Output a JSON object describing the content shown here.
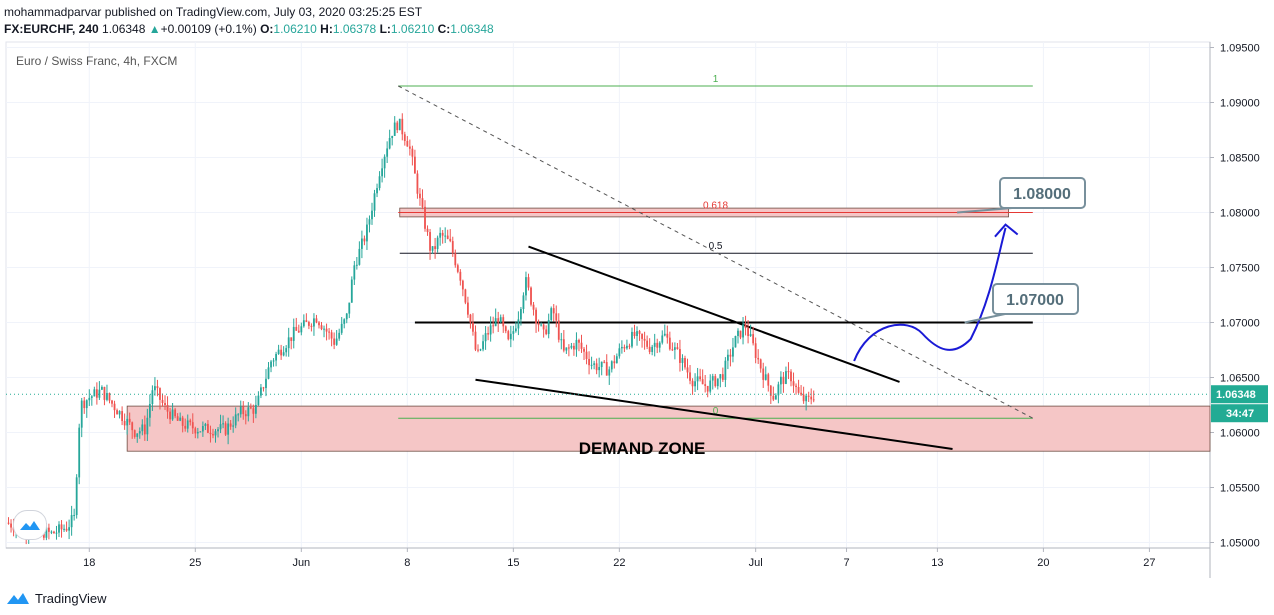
{
  "header": {
    "publisher_line": "mohammadparvar published on TradingView.com, July 03, 2020 03:25:25 EST",
    "symbol": "FX:EURCHF, 240",
    "last": "1.06348",
    "change": "+0.00109 (+0.1%)",
    "o_label": "O:",
    "o_value": "1.06210",
    "h_label": "H:",
    "h_value": "1.06378",
    "l_label": "L:",
    "l_value": "1.06210",
    "c_label": "C:",
    "c_value": "1.06348"
  },
  "footer": {
    "brand": "TradingView"
  },
  "colors": {
    "up": "#26a69a",
    "down": "#ef5350",
    "zone": "#f5c6c6",
    "fib_green": "#4caf50",
    "fib_red": "#e53935",
    "curve": "#1a1ad6",
    "callout": "#78909c",
    "price_tag": "#22ab94"
  },
  "chart_data": {
    "type": "candlestick",
    "title": "Euro / Swiss Franc, 4h, FXCM",
    "ylim": [
      1.0495,
      1.0955
    ],
    "y_ticks": [
      "1.05000",
      "1.05500",
      "1.06000",
      "1.06500",
      "1.07000",
      "1.07500",
      "1.08000",
      "1.08500",
      "1.09000",
      "1.09500"
    ],
    "x_ticks": [
      {
        "label": "18",
        "day": -13
      },
      {
        "label": "25",
        "day": -6
      },
      {
        "label": "Jun",
        "day": 1
      },
      {
        "label": "8",
        "day": 8
      },
      {
        "label": "15",
        "day": 15
      },
      {
        "label": "22",
        "day": 22
      },
      {
        "label": "Jul",
        "day": 31
      },
      {
        "label": "7",
        "day": 37
      },
      {
        "label": "13",
        "day": 43
      },
      {
        "label": "20",
        "day": 50
      },
      {
        "label": "27",
        "day": 57
      }
    ],
    "x_range_days": [
      -18.5,
      61
    ],
    "last_price": "1.06348",
    "countdown": "34:47",
    "price_path": [
      [
        -18.5,
        1.0518
      ],
      [
        -17,
        1.0512
      ],
      [
        -15.5,
        1.0508
      ],
      [
        -14.5,
        1.0514
      ],
      [
        -14,
        1.0522
      ],
      [
        -13.6,
        1.0625
      ],
      [
        -13,
        1.0632
      ],
      [
        -12.2,
        1.0638
      ],
      [
        -11,
        1.0618
      ],
      [
        -10,
        1.0601
      ],
      [
        -9.3,
        1.0603
      ],
      [
        -8.8,
        1.0642
      ],
      [
        -8,
        1.0622
      ],
      [
        -7,
        1.0608
      ],
      [
        -5.7,
        1.0603
      ],
      [
        -4,
        1.0603
      ],
      [
        -3,
        1.0618
      ],
      [
        -2,
        1.0622
      ],
      [
        -1,
        1.0665
      ],
      [
        0.5,
        1.069
      ],
      [
        2,
        1.0705
      ],
      [
        3.2,
        1.0682
      ],
      [
        4,
        1.0705
      ],
      [
        4.5,
        1.0752
      ],
      [
        5.3,
        1.0782
      ],
      [
        6.2,
        1.084
      ],
      [
        6.9,
        1.0872
      ],
      [
        7.4,
        1.0882
      ],
      [
        8.1,
        1.0862
      ],
      [
        8.8,
        1.0812
      ],
      [
        9.6,
        1.0762
      ],
      [
        10.2,
        1.078
      ],
      [
        10.8,
        1.0772
      ],
      [
        11.5,
        1.0742
      ],
      [
        12,
        1.0712
      ],
      [
        12.6,
        1.0668
      ],
      [
        13.2,
        1.0688
      ],
      [
        14,
        1.0705
      ],
      [
        14.7,
        1.068
      ],
      [
        15.3,
        1.0705
      ],
      [
        15.8,
        1.0738
      ],
      [
        16.5,
        1.0705
      ],
      [
        17,
        1.0688
      ],
      [
        17.6,
        1.0712
      ],
      [
        18.3,
        1.0672
      ],
      [
        19.2,
        1.0682
      ],
      [
        20.2,
        1.0662
      ],
      [
        21.3,
        1.0657
      ],
      [
        22.2,
        1.0678
      ],
      [
        23,
        1.0688
      ],
      [
        24,
        1.0678
      ],
      [
        25,
        1.0688
      ],
      [
        26,
        1.0668
      ],
      [
        26.8,
        1.0648
      ],
      [
        27.8,
        1.0642
      ],
      [
        28.8,
        1.0652
      ],
      [
        29.6,
        1.0682
      ],
      [
        30.3,
        1.0698
      ],
      [
        31,
        1.0672
      ],
      [
        31.6,
        1.065
      ],
      [
        32.2,
        1.0632
      ],
      [
        32.7,
        1.0648
      ],
      [
        33.3,
        1.0652
      ],
      [
        33.9,
        1.0632
      ],
      [
        34.4,
        1.0628
      ],
      [
        34.9,
        1.0635
      ]
    ],
    "fib_levels": [
      {
        "label": "1",
        "price": 1.0915,
        "color": "#4caf50"
      },
      {
        "label": "0.618",
        "price": 1.08,
        "color": "#e53935"
      },
      {
        "label": "0.5",
        "price": 1.0763,
        "color": "#131722"
      },
      {
        "label": "0",
        "price": 1.0613,
        "color": "#4caf50"
      }
    ],
    "key_level": 1.07,
    "demand_zone": {
      "label": "DEMAND ZONE",
      "from": 1.0583,
      "to": 1.0624
    },
    "resistance_zone": {
      "from": 1.0796,
      "to": 1.0804
    },
    "callouts": [
      "1.08000",
      "1.07000"
    ]
  }
}
